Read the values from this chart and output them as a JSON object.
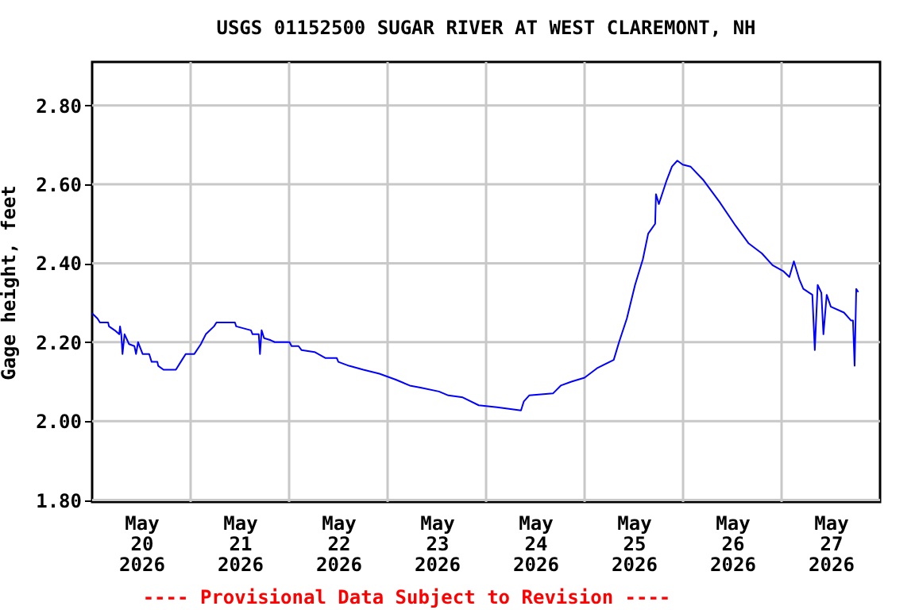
{
  "chart_data": {
    "type": "line",
    "title": "USGS 01152500 SUGAR RIVER AT WEST CLAREMONT, NH",
    "ylabel": "Gage height, feet",
    "annotations": [
      "---- Provisional Data Subject to Revision ----"
    ],
    "x": [
      "2026-05-20T00:00",
      "2026-05-20T01:18",
      "2026-05-20T01:54",
      "2026-05-20T03:54",
      "2026-05-20T04:06",
      "2026-05-20T05:30",
      "2026-05-20T06:36",
      "2026-05-20T06:48",
      "2026-05-20T07:06",
      "2026-05-20T07:24",
      "2026-05-20T07:54",
      "2026-05-20T09:00",
      "2026-05-20T10:18",
      "2026-05-20T10:42",
      "2026-05-20T11:12",
      "2026-05-20T12:18",
      "2026-05-20T13:54",
      "2026-05-20T14:30",
      "2026-05-20T15:54",
      "2026-05-20T16:06",
      "2026-05-20T17:24",
      "2026-05-20T20:24",
      "2026-05-20T21:54",
      "2026-05-20T22:48",
      "2026-05-21T00:54",
      "2026-05-21T02:30",
      "2026-05-21T03:42",
      "2026-05-21T05:42",
      "2026-05-21T06:18",
      "2026-05-21T10:48",
      "2026-05-21T11:06",
      "2026-05-21T14:42",
      "2026-05-21T15:06",
      "2026-05-21T16:36",
      "2026-05-21T16:54",
      "2026-05-21T17:18",
      "2026-05-21T17:54",
      "2026-05-21T19:30",
      "2026-05-21T20:30",
      "2026-05-22T00:06",
      "2026-05-22T00:36",
      "2026-05-22T02:18",
      "2026-05-22T03:00",
      "2026-05-22T06:12",
      "2026-05-22T08:48",
      "2026-05-22T11:36",
      "2026-05-22T12:00",
      "2026-05-22T14:36",
      "2026-05-22T18:06",
      "2026-05-22T22:00",
      "2026-05-23T02:00",
      "2026-05-23T05:24",
      "2026-05-23T08:00",
      "2026-05-23T12:30",
      "2026-05-23T14:48",
      "2026-05-23T18:18",
      "2026-05-23T22:12",
      "2026-05-24T02:42",
      "2026-05-24T08:30",
      "2026-05-24T09:12",
      "2026-05-24T10:30",
      "2026-05-24T16:18",
      "2026-05-24T18:12",
      "2026-05-24T20:48",
      "2026-05-25T00:00",
      "2026-05-25T03:12",
      "2026-05-25T07:06",
      "2026-05-25T08:24",
      "2026-05-25T10:18",
      "2026-05-25T12:18",
      "2026-05-25T14:12",
      "2026-05-25T15:30",
      "2026-05-25T17:12",
      "2026-05-25T17:24",
      "2026-05-25T18:06",
      "2026-05-25T20:00",
      "2026-05-25T21:18",
      "2026-05-25T22:36",
      "2026-05-25T23:54",
      "2026-05-26T01:48",
      "2026-05-26T05:00",
      "2026-05-26T08:54",
      "2026-05-26T12:48",
      "2026-05-26T16:00",
      "2026-05-26T19:12",
      "2026-05-26T21:48",
      "2026-05-27T00:24",
      "2026-05-27T01:54",
      "2026-05-27T03:00",
      "2026-05-27T04:18",
      "2026-05-27T05:18",
      "2026-05-27T07:30",
      "2026-05-27T08:06",
      "2026-05-27T08:48",
      "2026-05-27T09:42",
      "2026-05-27T10:12",
      "2026-05-27T11:00",
      "2026-05-27T12:00",
      "2026-05-27T15:12",
      "2026-05-27T16:54",
      "2026-05-27T17:24",
      "2026-05-27T17:48",
      "2026-05-27T18:12",
      "2026-05-27T18:42"
    ],
    "series": [
      {
        "color": "#0000ff",
        "values": [
          2.273,
          2.26,
          2.25,
          2.25,
          2.24,
          2.23,
          2.22,
          2.24,
          2.22,
          2.17,
          2.22,
          2.195,
          2.19,
          2.17,
          2.2,
          2.17,
          2.17,
          2.15,
          2.15,
          2.14,
          2.13,
          2.13,
          2.155,
          2.17,
          2.17,
          2.195,
          2.22,
          2.24,
          2.25,
          2.25,
          2.24,
          2.23,
          2.22,
          2.22,
          2.17,
          2.23,
          2.21,
          2.205,
          2.2,
          2.2,
          2.19,
          2.19,
          2.18,
          2.175,
          2.16,
          2.16,
          2.15,
          2.14,
          2.13,
          2.12,
          2.105,
          2.09,
          2.085,
          2.075,
          2.065,
          2.06,
          2.04,
          2.035,
          2.027,
          2.05,
          2.065,
          2.07,
          2.09,
          2.1,
          2.11,
          2.135,
          2.155,
          2.2,
          2.26,
          2.345,
          2.41,
          2.475,
          2.5,
          2.575,
          2.55,
          2.61,
          2.645,
          2.66,
          2.65,
          2.645,
          2.61,
          2.555,
          2.495,
          2.45,
          2.425,
          2.395,
          2.38,
          2.365,
          2.405,
          2.36,
          2.335,
          2.32,
          2.18,
          2.345,
          2.325,
          2.22,
          2.32,
          2.29,
          2.275,
          2.255,
          2.255,
          2.14,
          2.335,
          2.327
        ]
      }
    ],
    "xlim": [
      "2026-05-20T00:00",
      "2026-05-28T00:00"
    ],
    "xticks": [
      {
        "value": "2026-05-20T12:00",
        "label": "May\n20\n2026"
      },
      {
        "value": "2026-05-21T00:00",
        "label": null
      },
      {
        "value": "2026-05-21T12:00",
        "label": "May\n21\n2026"
      },
      {
        "value": "2026-05-22T00:00",
        "label": null
      },
      {
        "value": "2026-05-22T12:00",
        "label": "May\n22\n2026"
      },
      {
        "value": "2026-05-23T00:00",
        "label": null
      },
      {
        "value": "2026-05-23T12:00",
        "label": "May\n23\n2026"
      },
      {
        "value": "2026-05-24T00:00",
        "label": null
      },
      {
        "value": "2026-05-24T12:00",
        "label": "May\n24\n2026"
      },
      {
        "value": "2026-05-25T00:00",
        "label": null
      },
      {
        "value": "2026-05-25T12:00",
        "label": "May\n25\n2026"
      },
      {
        "value": "2026-05-26T00:00",
        "label": null
      },
      {
        "value": "2026-05-26T12:00",
        "label": "May\n26\n2026"
      },
      {
        "value": "2026-05-27T00:00",
        "label": null
      },
      {
        "value": "2026-05-27T12:00",
        "label": "May\n27\n2026"
      }
    ],
    "ylim": [
      1.795,
      2.91
    ],
    "yticks": [
      {
        "value": 1.8,
        "label": "1.80"
      },
      {
        "value": 2.0,
        "label": "2.00"
      },
      {
        "value": 2.2,
        "label": "2.20"
      },
      {
        "value": 2.4,
        "label": "2.40"
      },
      {
        "value": 2.6,
        "label": "2.60"
      },
      {
        "value": 2.8,
        "label": "2.80"
      }
    ],
    "grid": true,
    "marker": "none",
    "line_style": "solid"
  }
}
